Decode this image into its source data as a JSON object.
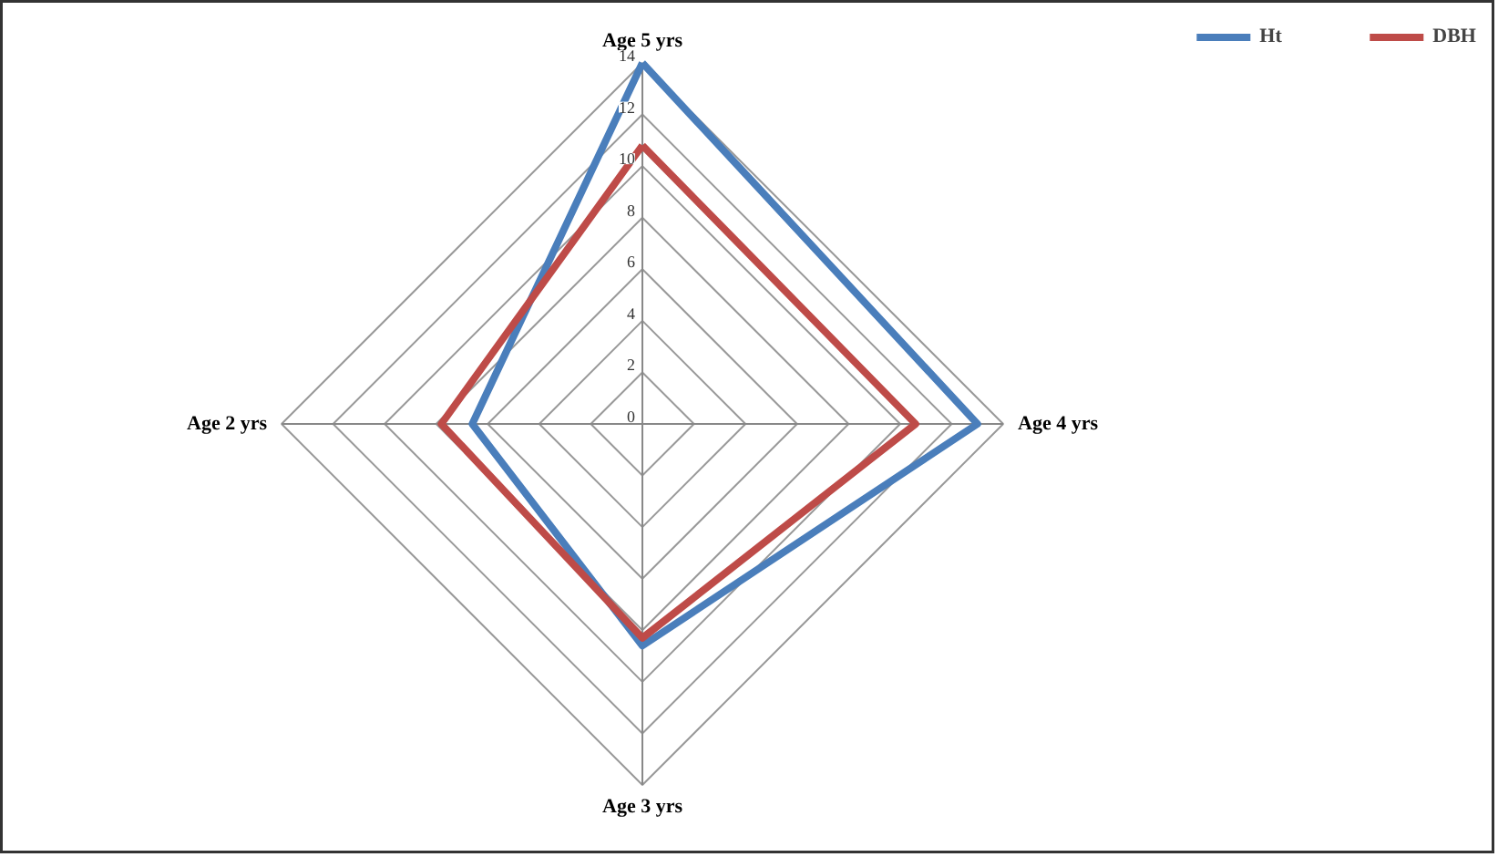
{
  "chart_data": {
    "type": "radar",
    "categories": [
      "Age 5 yrs",
      "Age 4 yrs",
      "Age 3 yrs",
      "Age 2 yrs"
    ],
    "series": [
      {
        "name": "Ht",
        "color": "#4a7ebb",
        "values": [
          14,
          13,
          8.6,
          6.6
        ]
      },
      {
        "name": "DBH",
        "color": "#be4b48",
        "values": [
          10.8,
          10.6,
          8.3,
          7.8
        ]
      }
    ],
    "ylim": [
      0,
      14
    ],
    "yticks": [
      0,
      2,
      4,
      6,
      8,
      10,
      12,
      14
    ],
    "grid": true,
    "legend": "top right"
  }
}
